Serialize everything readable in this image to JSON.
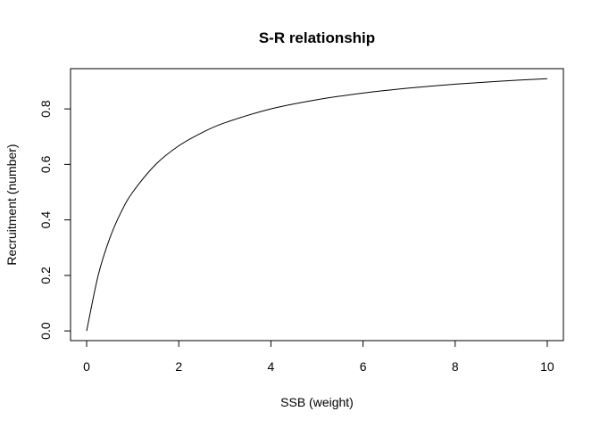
{
  "chart_data": {
    "type": "line",
    "title": "S-R relationship",
    "xlabel": "SSB (weight)",
    "ylabel": "Recruitment (number)",
    "xlim": [
      -0.35,
      10.35
    ],
    "ylim": [
      -0.035,
      0.945
    ],
    "xticks": [
      0,
      2,
      4,
      6,
      8,
      10
    ],
    "yticks": [
      0.0,
      0.2,
      0.4,
      0.6,
      0.8
    ],
    "xtick_labels": [
      "0",
      "2",
      "4",
      "6",
      "8",
      "10"
    ],
    "ytick_labels": [
      "0.0",
      "0.2",
      "0.4",
      "0.6",
      "0.8"
    ],
    "grid": false,
    "line_color": "#000000",
    "series": [
      {
        "x": [
          0,
          0.25,
          0.5,
          0.75,
          1,
          1.5,
          2,
          2.5,
          3,
          4,
          5,
          6,
          7,
          8,
          9,
          10
        ],
        "values": [
          0,
          0.2,
          0.333,
          0.429,
          0.5,
          0.6,
          0.667,
          0.714,
          0.75,
          0.8,
          0.833,
          0.857,
          0.875,
          0.889,
          0.9,
          0.909
        ]
      }
    ]
  }
}
